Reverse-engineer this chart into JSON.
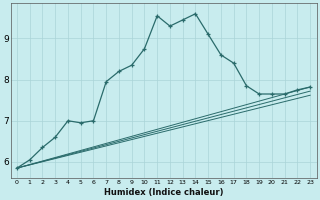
{
  "xlabel": "Humidex (Indice chaleur)",
  "bg_color": "#c8ecee",
  "grid_color": "#aad4d8",
  "line_color": "#2a6b6b",
  "x_ticks": [
    0,
    1,
    2,
    3,
    4,
    5,
    6,
    7,
    8,
    9,
    10,
    11,
    12,
    13,
    14,
    15,
    16,
    17,
    18,
    19,
    20,
    21,
    22,
    23
  ],
  "y_ticks": [
    6,
    7,
    8,
    9
  ],
  "xlim": [
    -0.5,
    23.5
  ],
  "ylim": [
    5.6,
    9.85
  ],
  "curve1_x": [
    0,
    1,
    2,
    3,
    4,
    5,
    6,
    7,
    8,
    9,
    10,
    11,
    12,
    13,
    14,
    15,
    16,
    17,
    18,
    19,
    20,
    21,
    22,
    23
  ],
  "curve1_y": [
    5.85,
    6.05,
    6.35,
    6.6,
    7.0,
    6.95,
    7.0,
    7.95,
    8.2,
    8.35,
    8.75,
    9.55,
    9.3,
    9.45,
    9.6,
    9.1,
    8.6,
    8.4,
    7.85,
    7.65,
    7.65,
    7.65,
    7.75,
    7.82
  ],
  "curve2_x": [
    0,
    23
  ],
  "curve2_y": [
    5.85,
    7.82
  ],
  "curve3_x": [
    0,
    23
  ],
  "curve3_y": [
    5.85,
    7.72
  ],
  "curve4_x": [
    0,
    23
  ],
  "curve4_y": [
    5.85,
    7.62
  ]
}
